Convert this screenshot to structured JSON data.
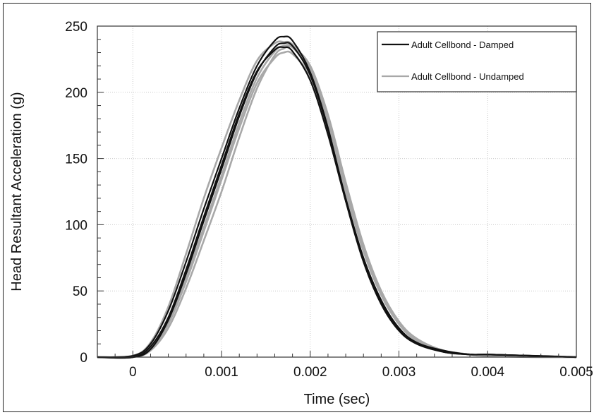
{
  "chart_data": {
    "type": "line",
    "xlabel": "Time (sec)",
    "ylabel": "Head Resultant Acceleration (g)",
    "xlim": [
      -0.0004,
      0.005
    ],
    "ylim": [
      0,
      250
    ],
    "xticks": [
      0,
      0.001,
      0.002,
      0.003,
      0.004,
      0.005
    ],
    "xtick_labels": [
      "0",
      "0.001",
      "0.002",
      "0.003",
      "0.004",
      "0.005"
    ],
    "yticks": [
      0,
      50,
      100,
      150,
      200,
      250
    ],
    "ytick_labels": [
      "0",
      "50",
      "100",
      "150",
      "200",
      "250"
    ],
    "grid": true,
    "legend_position": "top-right",
    "legend": [
      {
        "label": "Adult Cellbond - Damped",
        "color": "#111111"
      },
      {
        "label": "Adult Cellbond - Undamped",
        "color": "#a8a8a8"
      }
    ],
    "series": [
      {
        "name": "Adult Cellbond - Damped",
        "color": "#111111",
        "trials": [
          {
            "x": [
              -0.0004,
              0,
              0.0002,
              0.0004,
              0.0006,
              0.0008,
              0.001,
              0.0012,
              0.0014,
              0.0016,
              0.0017,
              0.0018,
              0.002,
              0.0022,
              0.0024,
              0.0026,
              0.0028,
              0.003,
              0.0032,
              0.0035,
              0.0038,
              0.004,
              0.0045,
              0.005
            ],
            "y": [
              0,
              1,
              10,
              35,
              72,
              112,
              150,
              188,
              220,
              239,
              242,
              239,
              215,
              173,
              118,
              72,
              40,
              20,
              10,
              4,
              2,
              2,
              1,
              0
            ]
          },
          {
            "x": [
              -0.0004,
              0,
              0.0002,
              0.0004,
              0.0006,
              0.0008,
              0.001,
              0.0012,
              0.0014,
              0.0016,
              0.0017,
              0.0018,
              0.002,
              0.0022,
              0.0024,
              0.0026,
              0.0028,
              0.003,
              0.0032,
              0.0035,
              0.0038,
              0.004,
              0.0045,
              0.005
            ],
            "y": [
              0,
              0,
              6,
              28,
              63,
              103,
              142,
              182,
              215,
              234,
              237,
              235,
              213,
              172,
              120,
              75,
              43,
              22,
              11,
              5,
              2,
              2,
              1,
              0
            ]
          },
          {
            "x": [
              -0.0004,
              0,
              0.0002,
              0.0004,
              0.0006,
              0.0008,
              0.001,
              0.0012,
              0.0014,
              0.0016,
              0.0017,
              0.0018,
              0.002,
              0.0022,
              0.0024,
              0.0026,
              0.0028,
              0.003,
              0.0032,
              0.0035,
              0.0038,
              0.004,
              0.0045,
              0.005
            ],
            "y": [
              0,
              0,
              8,
              30,
              66,
              106,
              145,
              184,
              216,
              232,
              234,
              231,
              209,
              168,
              118,
              74,
              42,
              21,
              11,
              4,
              2,
              2,
              1,
              0
            ]
          }
        ]
      },
      {
        "name": "Adult Cellbond - Undamped",
        "color": "#a8a8a8",
        "trials": [
          {
            "x": [
              -0.0004,
              0,
              0.0002,
              0.0004,
              0.0006,
              0.0008,
              0.001,
              0.0012,
              0.0014,
              0.0016,
              0.0017,
              0.0018,
              0.002,
              0.0022,
              0.0024,
              0.0026,
              0.0028,
              0.003,
              0.0032,
              0.0035,
              0.0038,
              0.004,
              0.0045,
              0.005
            ],
            "y": [
              0,
              1,
              11,
              38,
              78,
              120,
              158,
              194,
              224,
              237,
              238,
              236,
              218,
              178,
              125,
              80,
              47,
              25,
              13,
              5,
              2,
              1,
              1,
              0
            ]
          },
          {
            "x": [
              -0.0004,
              0,
              0.0002,
              0.0004,
              0.0006,
              0.0008,
              0.001,
              0.0012,
              0.0014,
              0.0016,
              0.0017,
              0.0018,
              0.002,
              0.0022,
              0.0024,
              0.0026,
              0.0028,
              0.003,
              0.0032,
              0.0035,
              0.0038,
              0.004,
              0.0045,
              0.005
            ],
            "y": [
              0,
              0,
              5,
              22,
              52,
              88,
              125,
              166,
              203,
              228,
              233,
              234,
              220,
              183,
              132,
              85,
              50,
              27,
              14,
              5,
              2,
              1,
              1,
              0
            ]
          },
          {
            "x": [
              -0.0004,
              0,
              0.0002,
              0.0004,
              0.0006,
              0.0008,
              0.001,
              0.0012,
              0.0014,
              0.0016,
              0.0017,
              0.0018,
              0.002,
              0.0022,
              0.0024,
              0.0026,
              0.0028,
              0.003,
              0.0032,
              0.0035,
              0.0038,
              0.004,
              0.0045,
              0.005
            ],
            "y": [
              0,
              0,
              7,
              27,
              60,
              98,
              137,
              177,
              211,
              231,
              235,
              234,
              216,
              178,
              128,
              82,
              48,
              26,
              13,
              5,
              2,
              1,
              1,
              0
            ]
          },
          {
            "x": [
              -0.0004,
              0,
              0.0002,
              0.0004,
              0.0006,
              0.0008,
              0.001,
              0.0012,
              0.0014,
              0.0016,
              0.0017,
              0.0018,
              0.002,
              0.0022,
              0.0024,
              0.0026,
              0.0028,
              0.003,
              0.0032,
              0.0035,
              0.0038,
              0.004,
              0.0045,
              0.005
            ],
            "y": [
              0,
              0,
              6,
              25,
              57,
              95,
              134,
              173,
              207,
              226,
              230,
              229,
              212,
              176,
              127,
              81,
              47,
              25,
              12,
              4,
              2,
              1,
              0,
              0
            ]
          }
        ]
      }
    ]
  }
}
